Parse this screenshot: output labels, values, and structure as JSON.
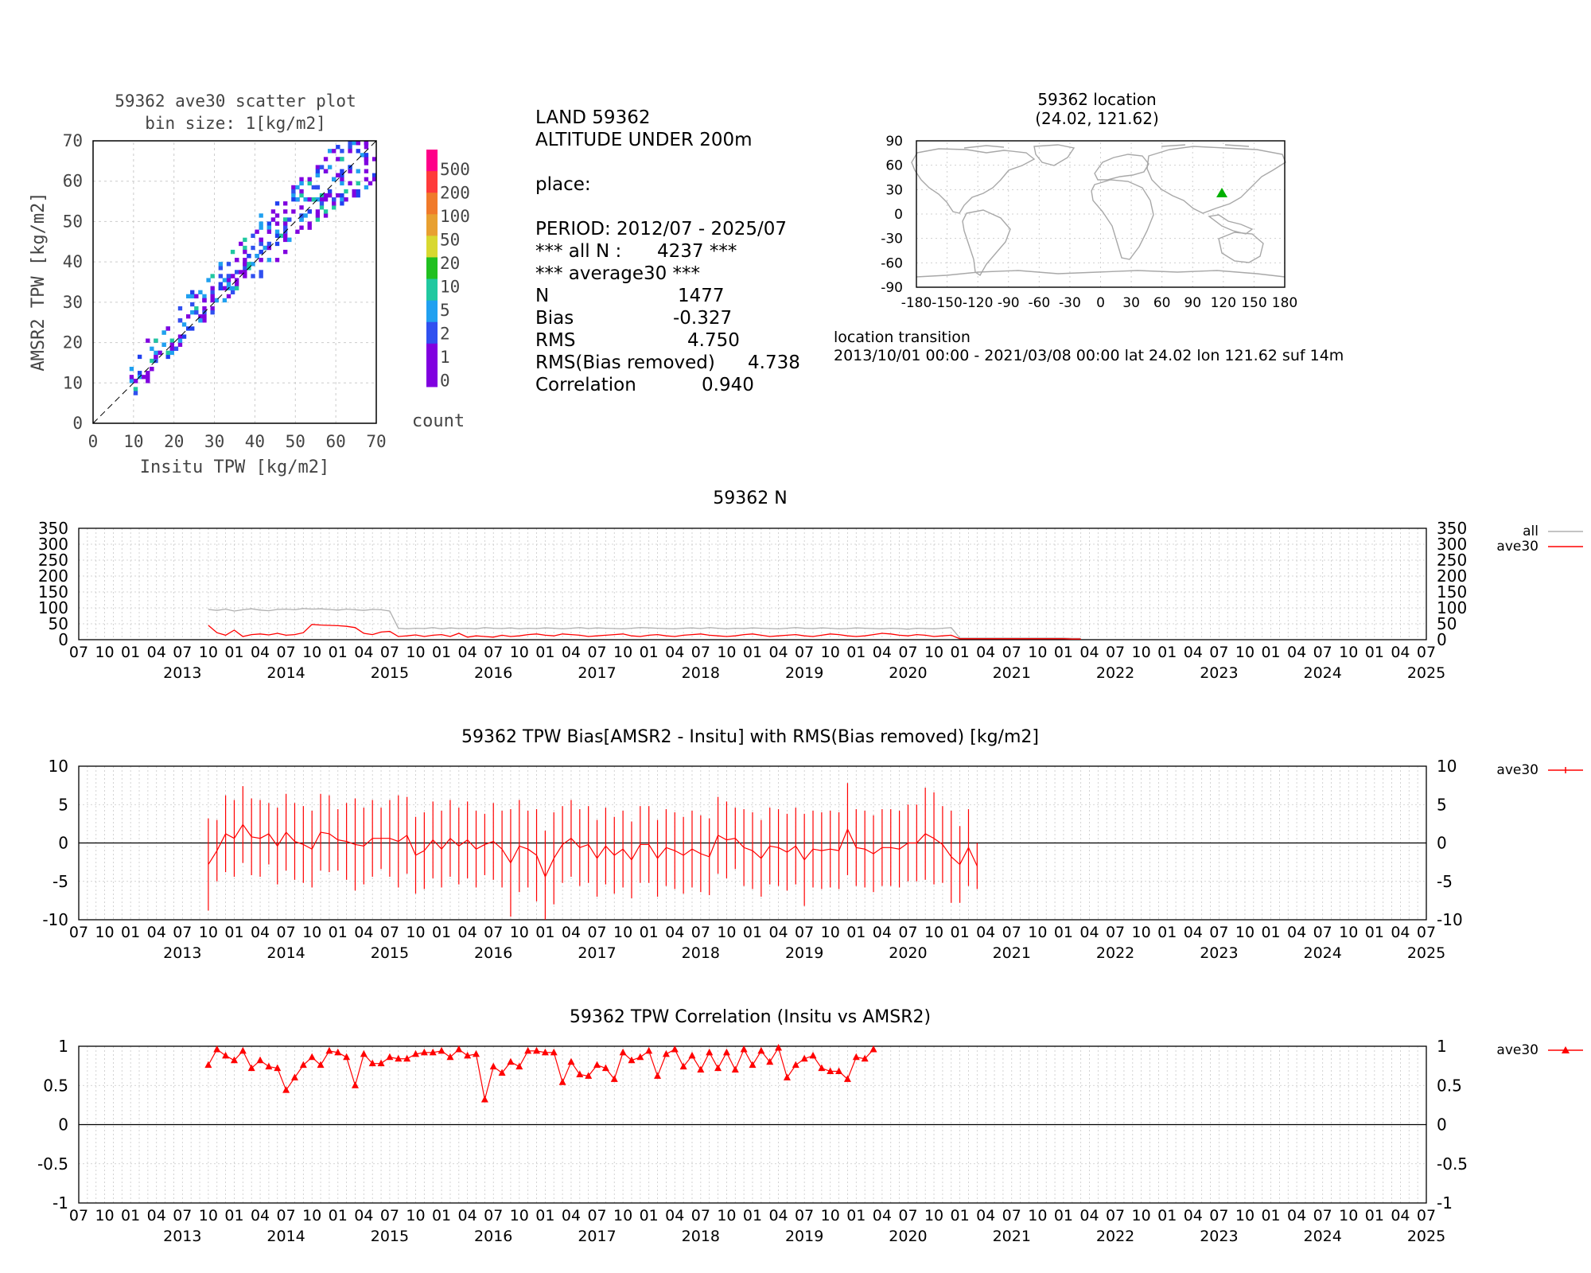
{
  "scatter": {
    "title": "59362 ave30 scatter plot",
    "subtitle": "bin size: 1[kg/m2]",
    "xlabel": "Insitu TPW [kg/m2]",
    "ylabel": "AMSR2 TPW [kg/m2]",
    "ticks": [
      "0",
      "10",
      "20",
      "30",
      "40",
      "50",
      "60",
      "70"
    ],
    "colorbar_labels": [
      "500",
      "200",
      "100",
      "50",
      "20",
      "10",
      "5",
      "2",
      "1",
      "0"
    ],
    "colorbar_colors": [
      "#ff0088",
      "#ff3a3a",
      "#f07a2a",
      "#e8a030",
      "#d8d830",
      "#20c020",
      "#20c8a0",
      "#20a0f0",
      "#3050f0",
      "#8000e0",
      "#8000e0"
    ],
    "colorbar_title": "count"
  },
  "stats": {
    "line1": "LAND 59362",
    "line2": "ALTITUDE UNDER 200m",
    "place": "place:",
    "period": "PERIOD: 2012/07 - 2025/07",
    "alln_label": "*** all N :",
    "alln_value": "4237 ***",
    "avg_header": "*** average30 ***",
    "rows": [
      {
        "label": "N",
        "value": "1477"
      },
      {
        "label": "Bias",
        "value": "-0.327"
      },
      {
        "label": "RMS",
        "value": "4.750"
      },
      {
        "label": "RMS(Bias removed)",
        "value": "4.738"
      },
      {
        "label": "Correlation",
        "value": "0.940"
      }
    ]
  },
  "location": {
    "title": "59362 location",
    "coords": "(24.02, 121.62)",
    "yticks": [
      "90",
      "60",
      "30",
      "0",
      "-30",
      "-60",
      "-90"
    ],
    "xticks": [
      "-180",
      "-150",
      "-120",
      "-90",
      "-60",
      "-30",
      "0",
      "30",
      "60",
      "90",
      "120",
      "150",
      "180"
    ],
    "transition_label": "location transition",
    "transition_text": "2013/10/01 00:00 - 2021/03/08 00:00 lat 24.02 lon 121.62 suf 14m",
    "marker_color": "#00b000"
  },
  "time_axis": {
    "month_labels": [
      "07",
      "10",
      "01",
      "04",
      "07",
      "10",
      "01",
      "04",
      "07",
      "10",
      "01",
      "04",
      "07",
      "10",
      "01",
      "04",
      "07",
      "10",
      "01",
      "04",
      "07",
      "10",
      "01",
      "04",
      "07",
      "10",
      "01",
      "04",
      "07",
      "10",
      "01",
      "04",
      "07",
      "10",
      "01",
      "04",
      "07",
      "10",
      "01",
      "04",
      "07",
      "10",
      "01",
      "04",
      "07",
      "10",
      "01",
      "04",
      "07",
      "10",
      "01",
      "04",
      "07"
    ],
    "year_labels": [
      "2013",
      "2014",
      "2015",
      "2016",
      "2017",
      "2018",
      "2019",
      "2020",
      "2021",
      "2022",
      "2023",
      "2024",
      "2025"
    ]
  },
  "n_panel": {
    "title": "59362 N",
    "yticks": [
      "350",
      "300",
      "250",
      "200",
      "150",
      "100",
      "50",
      "0"
    ],
    "legend_all": "all",
    "legend_ave30": "ave30",
    "all_color": "#b0b0b0",
    "ave30_color": "#ff0000"
  },
  "bias_panel": {
    "title": "59362 TPW Bias[AMSR2 - Insitu] with RMS(Bias removed) [kg/m2]",
    "yticks": [
      "10",
      "5",
      "0",
      "-5",
      "-10"
    ],
    "legend": "ave30"
  },
  "corr_panel": {
    "title": "59362 TPW Correlation (Insitu vs AMSR2)",
    "yticks": [
      "1",
      "0.5",
      "0",
      "-0.5",
      "-1"
    ],
    "legend": "ave30"
  },
  "chart_data": [
    {
      "type": "heatmap",
      "title": "59362 ave30 scatter plot",
      "xlabel": "Insitu TPW [kg/m2]",
      "ylabel": "AMSR2 TPW [kg/m2]",
      "xlim": [
        0,
        70
      ],
      "ylim": [
        0,
        70
      ],
      "grid": true,
      "bin_size": 1,
      "description_bins_hint": [
        {
          "x": 10,
          "y": 10
        },
        {
          "x": 12,
          "y": 12
        },
        {
          "x": 14,
          "y": 16
        },
        {
          "x": 16,
          "y": 18
        },
        {
          "x": 18,
          "y": 20
        },
        {
          "x": 20,
          "y": 22
        },
        {
          "x": 22,
          "y": 25
        },
        {
          "x": 24,
          "y": 27
        },
        {
          "x": 26,
          "y": 28
        },
        {
          "x": 28,
          "y": 31
        },
        {
          "x": 30,
          "y": 33
        },
        {
          "x": 32,
          "y": 34
        },
        {
          "x": 34,
          "y": 36
        },
        {
          "x": 36,
          "y": 39
        },
        {
          "x": 38,
          "y": 41
        },
        {
          "x": 40,
          "y": 42
        },
        {
          "x": 42,
          "y": 45
        },
        {
          "x": 44,
          "y": 47
        },
        {
          "x": 46,
          "y": 49
        },
        {
          "x": 48,
          "y": 51
        },
        {
          "x": 50,
          "y": 53
        },
        {
          "x": 52,
          "y": 54
        },
        {
          "x": 54,
          "y": 56
        },
        {
          "x": 56,
          "y": 58
        },
        {
          "x": 58,
          "y": 60
        },
        {
          "x": 60,
          "y": 61
        },
        {
          "x": 62,
          "y": 63
        },
        {
          "x": 64,
          "y": 64
        },
        {
          "x": 66,
          "y": 65
        },
        {
          "x": 68,
          "y": 66
        }
      ]
    },
    {
      "type": "line",
      "title": "59362 N",
      "x_start": "2013-10",
      "x_step_months": 1,
      "ylim": [
        0,
        350
      ],
      "series": [
        {
          "name": "all",
          "values": [
            95,
            92,
            96,
            90,
            94,
            97,
            93,
            91,
            95,
            96,
            94,
            98,
            96,
            97,
            95,
            93,
            96,
            94,
            92,
            95,
            94,
            90,
            36,
            34,
            36,
            35,
            38,
            34,
            37,
            35,
            36,
            34,
            38,
            36,
            35,
            37,
            34,
            36,
            35,
            37,
            36,
            34,
            36,
            38,
            35,
            37,
            36,
            35,
            34,
            36,
            38,
            37,
            36,
            35,
            34,
            36,
            37,
            35,
            38,
            36,
            34,
            36,
            35,
            37,
            36,
            35,
            34,
            36,
            38,
            36,
            35,
            37,
            36,
            34,
            35,
            37,
            36,
            35,
            34,
            36,
            35,
            33,
            36,
            35,
            34,
            36,
            38,
            5,
            5,
            5,
            5,
            5,
            5,
            5,
            5,
            5,
            5,
            5,
            5,
            5,
            4,
            4
          ]
        },
        {
          "name": "ave30",
          "values": [
            45,
            22,
            14,
            30,
            10,
            16,
            18,
            15,
            20,
            14,
            16,
            22,
            48,
            46,
            45,
            44,
            42,
            38,
            20,
            16,
            24,
            26,
            10,
            12,
            15,
            10,
            14,
            16,
            10,
            20,
            8,
            12,
            10,
            8,
            14,
            10,
            12,
            16,
            18,
            14,
            12,
            18,
            16,
            14,
            10,
            12,
            14,
            16,
            18,
            12,
            10,
            14,
            16,
            12,
            10,
            14,
            16,
            18,
            14,
            12,
            10,
            12,
            16,
            18,
            14,
            10,
            12,
            14,
            16,
            12,
            10,
            14,
            18,
            16,
            12,
            10,
            12,
            16,
            20,
            18,
            14,
            12,
            16,
            14,
            10,
            12,
            14,
            3,
            3,
            3,
            3,
            3,
            3,
            3,
            3,
            3,
            3,
            3,
            3,
            3,
            2,
            2
          ]
        }
      ]
    },
    {
      "type": "line",
      "title": "59362 TPW Bias[AMSR2 - Insitu] with RMS(Bias removed) [kg/m2]",
      "x_start": "2013-10",
      "x_step_months": 1,
      "ylim": [
        -10,
        10
      ],
      "series": [
        {
          "name": "ave30",
          "values": [
            -2.8,
            -1.0,
            1.2,
            0.6,
            2.4,
            0.8,
            0.6,
            1.2,
            -0.4,
            1.4,
            0.2,
            -0.2,
            -0.8,
            1.4,
            1.2,
            0.4,
            0.2,
            -0.2,
            -0.4,
            0.6,
            0.6,
            0.6,
            0.2,
            1.0,
            -1.6,
            -1.0,
            0.4,
            -0.8,
            0.6,
            -0.4,
            0.4,
            -0.8,
            -0.2,
            0.2,
            -0.8,
            -2.6,
            -0.4,
            -0.8,
            -1.6,
            -4.4,
            -2.0,
            -0.2,
            0.6,
            -0.6,
            -0.2,
            -2.0,
            -0.4,
            -1.6,
            -0.8,
            -2.2,
            -0.2,
            -0.2,
            -2.0,
            -0.6,
            -1.0,
            -1.6,
            -0.8,
            -1.4,
            -1.8,
            1.0,
            0.4,
            0.6,
            -0.6,
            -1.0,
            -2.0,
            -0.4,
            -0.6,
            -1.2,
            -0.4,
            -2.2,
            -0.8,
            -1.0,
            -0.8,
            -1.0,
            1.8,
            -0.6,
            -0.8,
            -1.4,
            -0.6,
            -0.6,
            -0.8,
            0.0,
            0.0,
            1.2,
            0.6,
            -0.2,
            -1.8,
            -2.8,
            -0.6,
            -3.0
          ],
          "error": [
            6,
            4,
            5,
            5,
            5,
            5,
            5,
            4,
            5,
            5,
            5,
            5,
            5,
            5,
            5,
            4,
            5,
            6,
            5,
            5,
            4,
            5,
            6,
            5,
            5,
            5,
            5,
            5,
            5,
            5,
            5,
            5,
            4,
            5,
            5,
            7,
            6,
            5,
            6,
            6,
            6,
            5,
            5,
            5,
            5,
            5,
            5,
            5,
            5,
            5,
            5,
            5,
            5,
            5,
            5,
            5,
            5,
            5,
            5,
            5,
            5,
            4,
            5,
            5,
            5,
            5,
            5,
            5,
            5,
            6,
            5,
            5,
            5,
            5,
            6,
            5,
            5,
            5,
            5,
            5,
            5,
            5,
            5,
            6,
            6,
            5,
            6,
            5,
            5,
            3
          ]
        }
      ]
    },
    {
      "type": "line",
      "title": "59362 TPW Correlation (Insitu vs AMSR2)",
      "x_start": "2013-10",
      "x_step_months": 1,
      "ylim": [
        -1,
        1
      ],
      "series": [
        {
          "name": "ave30",
          "values": [
            0.76,
            0.96,
            0.88,
            0.82,
            0.94,
            0.72,
            0.82,
            0.74,
            0.72,
            0.44,
            0.6,
            0.76,
            0.86,
            0.76,
            0.94,
            0.92,
            0.86,
            0.5,
            0.9,
            0.78,
            0.78,
            0.86,
            0.84,
            0.84,
            0.9,
            0.92,
            0.92,
            0.94,
            0.86,
            0.96,
            0.88,
            0.9,
            0.32,
            0.74,
            0.66,
            0.8,
            0.74,
            0.94,
            0.94,
            0.92,
            0.92,
            0.54,
            0.8,
            0.64,
            0.62,
            0.76,
            0.72,
            0.58,
            0.92,
            0.82,
            0.86,
            0.94,
            0.62,
            0.9,
            0.96,
            0.74,
            0.88,
            0.7,
            0.92,
            0.72,
            0.92,
            0.7,
            0.96,
            0.76,
            0.94,
            0.8,
            0.98,
            0.6,
            0.76,
            0.84,
            0.88,
            0.72,
            0.68,
            0.68,
            0.58,
            0.86,
            0.84,
            0.96
          ]
        }
      ]
    }
  ]
}
